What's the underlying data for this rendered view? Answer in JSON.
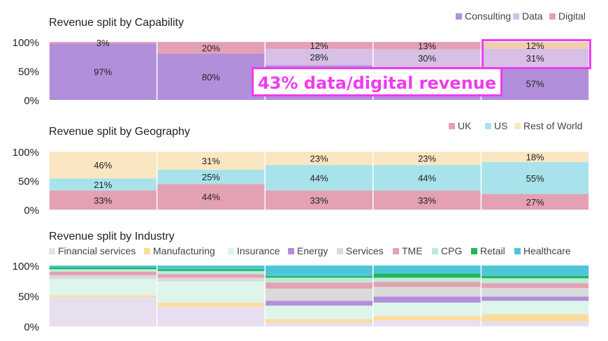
{
  "chart_data": [
    {
      "type": "bar",
      "stacked": "percent",
      "title": "Revenue split by Capability",
      "y_ticks": [
        "100%",
        "50%",
        "0%"
      ],
      "ylim": [
        0,
        100
      ],
      "legend_position": "top-right",
      "series": [
        {
          "name": "Consulting",
          "color": "#b28fda",
          "values": [
            97,
            80,
            60,
            57,
            57
          ],
          "labels": [
            "97%",
            "80%",
            "",
            "",
            "57%"
          ]
        },
        {
          "name": "Data",
          "color": "#d7bfe6",
          "values": [
            0,
            0,
            28,
            30,
            31
          ],
          "labels": [
            "",
            "",
            "28%",
            "30%",
            "31%"
          ]
        },
        {
          "name": "Digital",
          "color": "#e3a1b3",
          "values": [
            3,
            20,
            12,
            13,
            12
          ],
          "labels": [
            "3%",
            "20%",
            "12%",
            "13%",
            "12%"
          ]
        }
      ],
      "highlight_column": 4,
      "highlight_segment_colors": [
        "#b28fda",
        "#d7bfe6",
        "#f3ccb0"
      ]
    },
    {
      "type": "bar",
      "stacked": "percent",
      "title": "Revenue split by Geography",
      "y_ticks": [
        "100%",
        "50%",
        "0%"
      ],
      "ylim": [
        0,
        100
      ],
      "legend_position": "top-right",
      "series": [
        {
          "name": "UK",
          "color": "#e3a1b3",
          "values": [
            33,
            44,
            33,
            33,
            27
          ],
          "labels": [
            "33%",
            "44%",
            "33%",
            "33%",
            "27%"
          ]
        },
        {
          "name": "US",
          "color": "#a8e3eb",
          "values": [
            21,
            25,
            44,
            44,
            55
          ],
          "labels": [
            "21%",
            "25%",
            "44%",
            "44%",
            "55%"
          ]
        },
        {
          "name": "Rest of World",
          "color": "#fbe6c2",
          "values": [
            46,
            31,
            23,
            23,
            18
          ],
          "labels": [
            "46%",
            "31%",
            "23%",
            "23%",
            "18%"
          ]
        }
      ]
    },
    {
      "type": "bar",
      "stacked": "percent",
      "title": "Revenue split by Industry",
      "y_ticks": [
        "100%",
        "50%",
        "0%"
      ],
      "ylim": [
        0,
        100
      ],
      "legend_position": "top",
      "series": [
        {
          "name": "Financial services",
          "color": "#e7def0",
          "values": [
            48,
            32,
            6,
            10,
            8
          ]
        },
        {
          "name": "Manufacturing",
          "color": "#fcdc9c",
          "values": [
            3,
            7,
            6,
            7,
            12
          ]
        },
        {
          "name": "Insurance",
          "color": "#def5ec",
          "values": [
            27,
            35,
            22,
            22,
            22
          ]
        },
        {
          "name": "Energy",
          "color": "#b28fda",
          "values": [
            0,
            0,
            8,
            10,
            7
          ]
        },
        {
          "name": "Services",
          "color": "#dadada",
          "values": [
            6,
            6,
            20,
            16,
            14
          ]
        },
        {
          "name": "TME",
          "color": "#e3a1b3",
          "values": [
            6,
            6,
            10,
            8,
            8
          ]
        },
        {
          "name": "CPG",
          "color": "#b9ecd8",
          "values": [
            4,
            5,
            8,
            7,
            8
          ]
        },
        {
          "name": "Retail",
          "color": "#21b55a",
          "values": [
            3,
            3,
            3,
            7,
            4
          ]
        },
        {
          "name": "Healthcare",
          "color": "#4ec6da",
          "values": [
            3,
            6,
            17,
            13,
            17
          ]
        }
      ]
    }
  ],
  "annotation": {
    "text": "43% data/digital revenue",
    "color": "#ef3bf0"
  }
}
